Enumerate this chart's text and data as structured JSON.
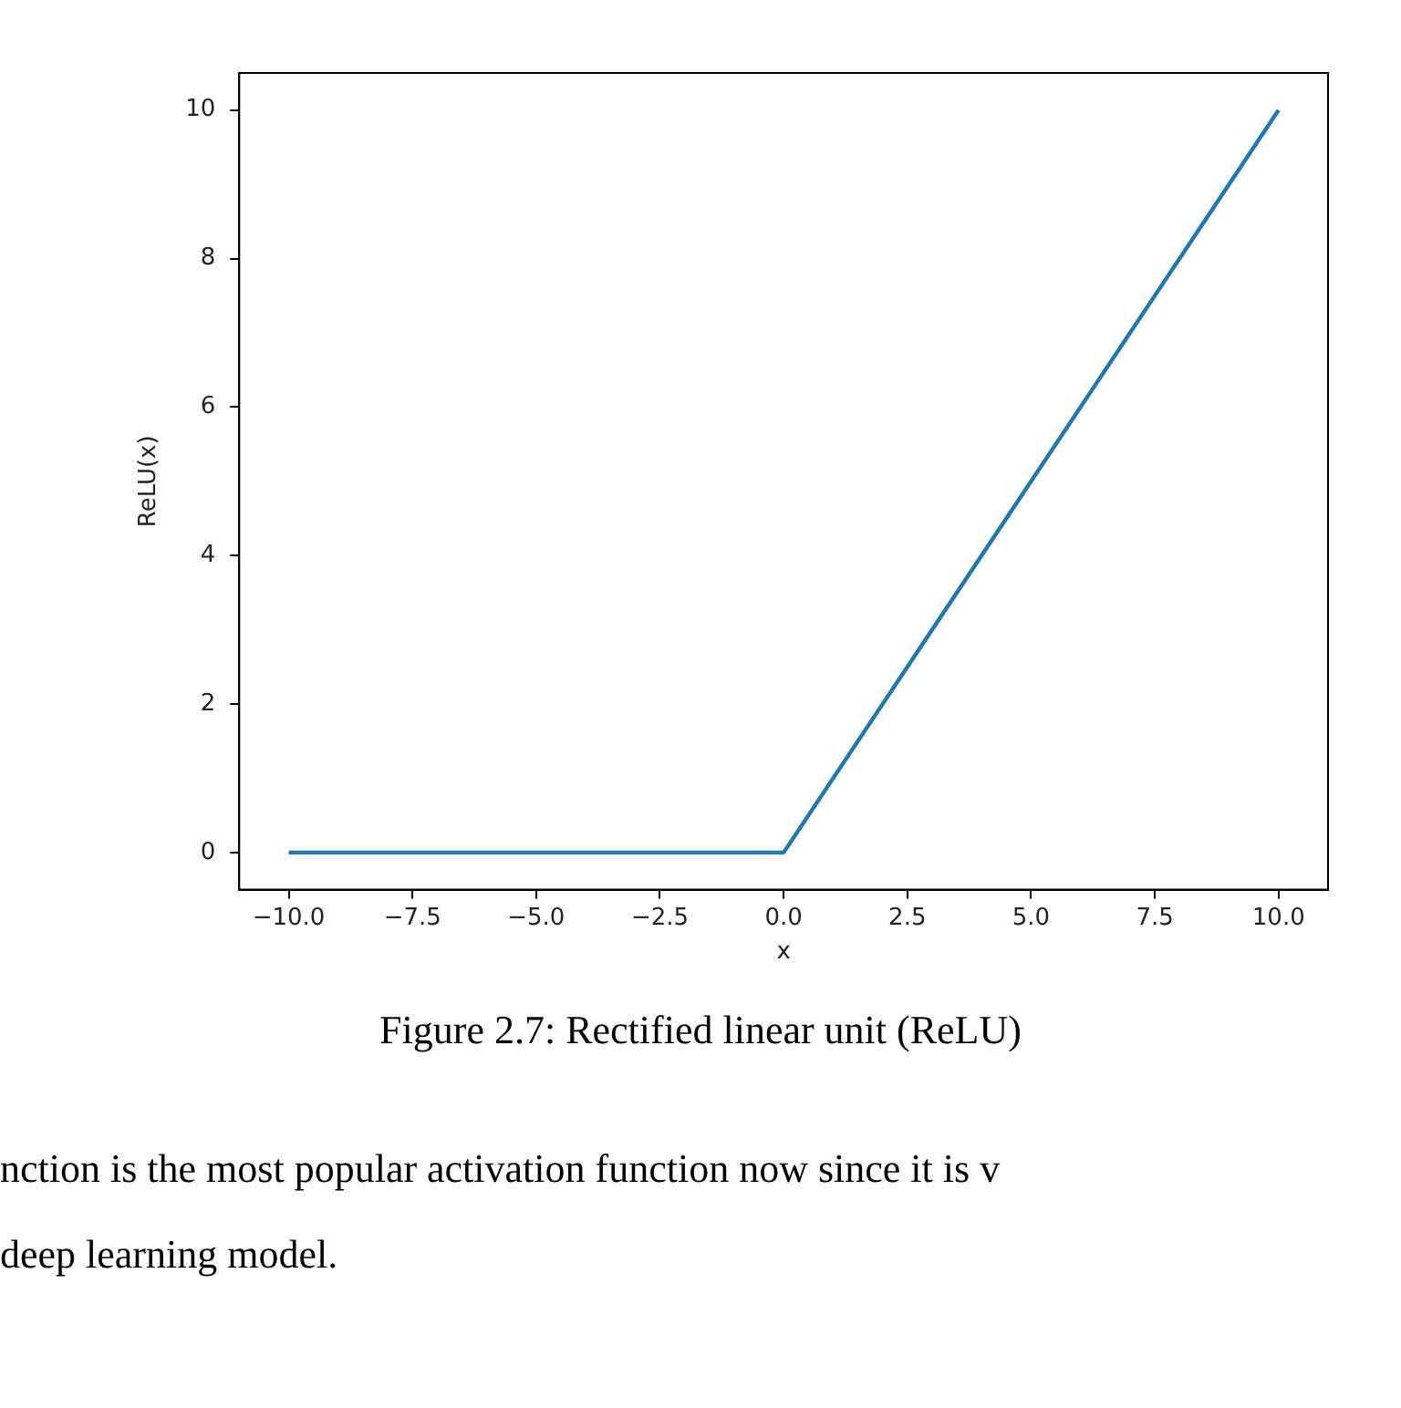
{
  "chart_data": {
    "type": "line",
    "xlabel": "x",
    "ylabel": "ReLU(x)",
    "x": [
      -10,
      0,
      10
    ],
    "series": [
      {
        "color": "#1f77b4",
        "values": [
          0,
          0,
          10
        ]
      }
    ],
    "xlim": [
      -11,
      11
    ],
    "xticks": [
      {
        "value": -10,
        "label": "−10.0"
      },
      {
        "value": -7.5,
        "label": "−7.5"
      },
      {
        "value": -5,
        "label": "−5.0"
      },
      {
        "value": -2.5,
        "label": "−2.5"
      },
      {
        "value": 0,
        "label": "0.0"
      },
      2.5,
      {
        "value": 5,
        "label": "5.0"
      },
      7.5,
      {
        "value": 10,
        "label": "10.0"
      }
    ],
    "ylim": [
      -0.5,
      10.5
    ],
    "yticks": [
      0,
      2,
      4,
      6,
      8,
      10
    ],
    "grid": false,
    "legend": false,
    "marker": "none",
    "line_style": "solid",
    "annotations": [
      "Figure 2.7: Rectified linear unit (ReLU)",
      "nction is the most popular activation function now since it is v",
      "deep learning model."
    ]
  }
}
